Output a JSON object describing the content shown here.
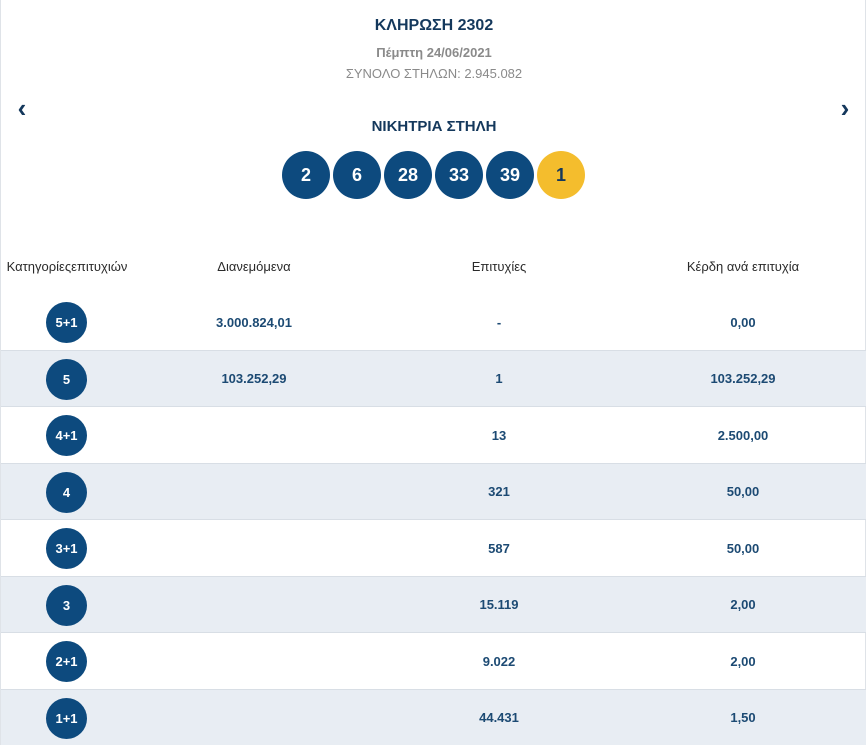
{
  "header": {
    "title": "ΚΛΗΡΩΣΗ 2302",
    "date": "Πέμπτη 24/06/2021",
    "total_columns": "ΣΥΝΟΛΟ ΣΤΗΛΩΝ: 2.945.082",
    "prev_icon": "‹",
    "next_icon": "›"
  },
  "winning": {
    "title": "ΝΙΚΗΤΡΙΑ ΣΤΗΛΗ",
    "numbers": [
      "2",
      "6",
      "28",
      "33",
      "39"
    ],
    "bonus": "1",
    "colors": {
      "main": "#0d4a7e",
      "bonus": "#f4bd2d"
    }
  },
  "table": {
    "headers": [
      "Κατηγορίες επιτυχιών",
      "Διανεμόμενα",
      "Επιτυχίες",
      "Κέρδη ανά επιτυχία"
    ],
    "rows": [
      {
        "category": "5+1",
        "distributed": "3.000.824,01",
        "winners": "-",
        "prize": "0,00"
      },
      {
        "category": "5",
        "distributed": "103.252,29",
        "winners": "1",
        "prize": "103.252,29"
      },
      {
        "category": "4+1",
        "distributed": "",
        "winners": "13",
        "prize": "2.500,00"
      },
      {
        "category": "4",
        "distributed": "",
        "winners": "321",
        "prize": "50,00"
      },
      {
        "category": "3+1",
        "distributed": "",
        "winners": "587",
        "prize": "50,00"
      },
      {
        "category": "3",
        "distributed": "",
        "winners": "15.119",
        "prize": "2,00"
      },
      {
        "category": "2+1",
        "distributed": "",
        "winners": "9.022",
        "prize": "2,00"
      },
      {
        "category": "1+1",
        "distributed": "",
        "winners": "44.431",
        "prize": "1,50"
      }
    ]
  }
}
